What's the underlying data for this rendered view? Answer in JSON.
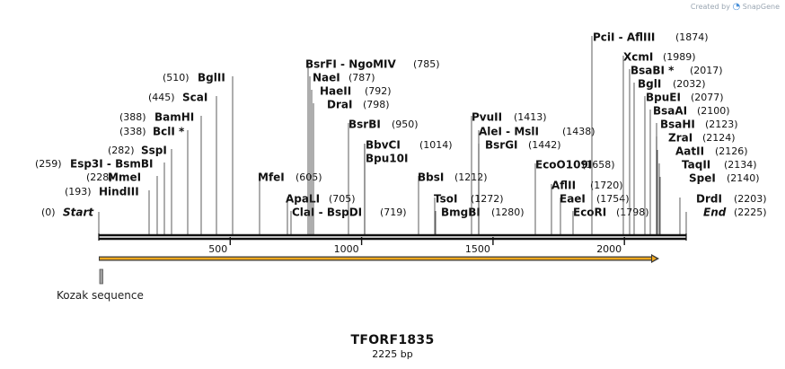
{
  "watermark": {
    "prefix": "Created by",
    "brand": "SnapGene"
  },
  "sequence": {
    "name": "TFORF1835",
    "length_label": "2225 bp",
    "length": 2225
  },
  "ruler_ticks": [
    "500",
    "1000",
    "1500",
    "2000"
  ],
  "features": [
    {
      "name": "Kozak sequence",
      "start": 0,
      "end": 12,
      "color": "#9e9e9e"
    },
    {
      "name": "ORF",
      "start": 0,
      "end": 2140,
      "color": "#f0a81e"
    }
  ],
  "sites": [
    {
      "label": "Start",
      "pos": "(0)",
      "italic": true
    },
    {
      "label": "HindIII",
      "pos": "(193)"
    },
    {
      "label": "MmeI",
      "pos": "(228)"
    },
    {
      "label": "Esp3I  - BsmBI",
      "pos": "(259)"
    },
    {
      "label": "SspI",
      "pos": "(282)"
    },
    {
      "label": "BclI *",
      "pos": "(338)"
    },
    {
      "label": "BamHI",
      "pos": "(388)"
    },
    {
      "label": "ScaI",
      "pos": "(445)"
    },
    {
      "label": "BglII",
      "pos": "(510)"
    },
    {
      "label": "MfeI",
      "pos": "(605)"
    },
    {
      "label": "ApaLI",
      "pos": "(705)"
    },
    {
      "label": "ClaI  - BspDI",
      "pos": "(719)"
    },
    {
      "label": "BsrFI  - NgoMIV",
      "pos": "(785)"
    },
    {
      "label": "NaeI",
      "pos": "(787)"
    },
    {
      "label": "HaeII",
      "pos": "(792)"
    },
    {
      "label": "DraI",
      "pos": "(798)"
    },
    {
      "label": "BsrBI",
      "pos": "(950)"
    },
    {
      "label": "BbvCI",
      "pos": "(1014)"
    },
    {
      "label": "Bpu10I",
      "pos": ""
    },
    {
      "label": "BbsI",
      "pos": "(1212)"
    },
    {
      "label": "TsoI",
      "pos": "(1272)"
    },
    {
      "label": "BmgBI",
      "pos": "(1280)"
    },
    {
      "label": "PvuII",
      "pos": "(1413)"
    },
    {
      "label": "AleI  - MslI",
      "pos": "(1438)"
    },
    {
      "label": "BsrGI",
      "pos": "(1442)"
    },
    {
      "label": "EcoO109I",
      "pos": "(1658)"
    },
    {
      "label": "AflII",
      "pos": "(1720)"
    },
    {
      "label": "EaeI",
      "pos": "(1754)"
    },
    {
      "label": "EcoRI",
      "pos": "(1798)"
    },
    {
      "label": "PciI  - AflIII",
      "pos": "(1874)"
    },
    {
      "label": "XcmI",
      "pos": "(1989)"
    },
    {
      "label": "BsaBI *",
      "pos": "(2017)"
    },
    {
      "label": "BglI",
      "pos": "(2032)"
    },
    {
      "label": "BpuEI",
      "pos": "(2077)"
    },
    {
      "label": "BsaAI",
      "pos": "(2100)"
    },
    {
      "label": "BsaHI",
      "pos": "(2123)"
    },
    {
      "label": "ZraI",
      "pos": "(2124)"
    },
    {
      "label": "AatII",
      "pos": "(2126)"
    },
    {
      "label": "TaqII",
      "pos": "(2134)"
    },
    {
      "label": "SpeI",
      "pos": "(2140)"
    },
    {
      "label": "DrdI",
      "pos": "(2203)"
    },
    {
      "label": "End",
      "pos": "(2225)",
      "italic": true
    }
  ]
}
